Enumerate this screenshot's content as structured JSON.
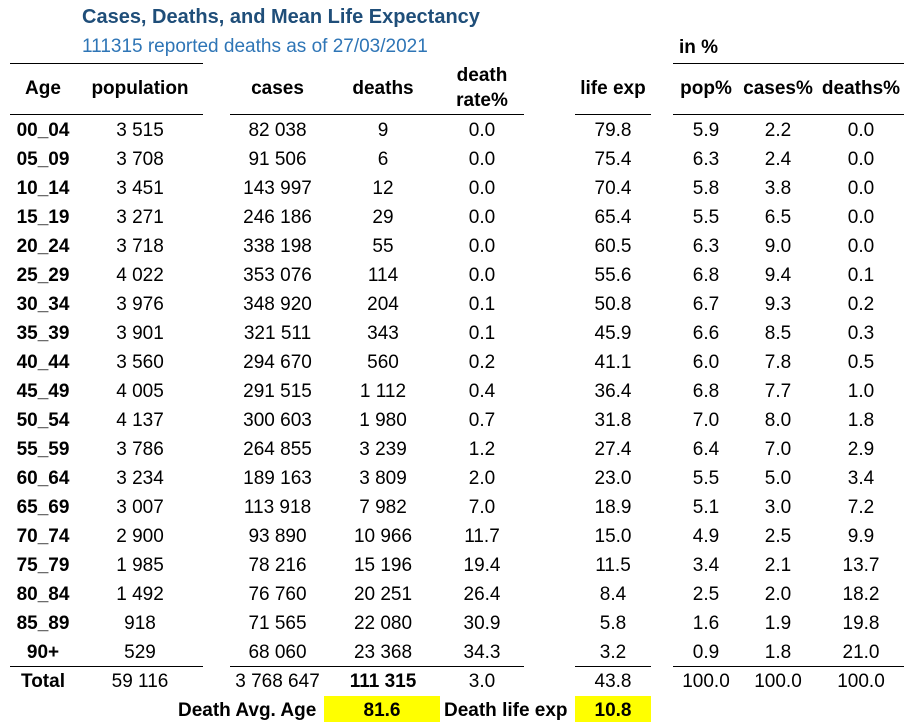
{
  "title": "Cases, Deaths, and Mean Life Expectancy",
  "subtitle": "111315 reported deaths as of 27/03/2021",
  "in_pct_label": "in %",
  "headers": {
    "age": "Age",
    "population": "population",
    "cases": "cases",
    "deaths": "deaths",
    "death_rate_1": "death",
    "death_rate_2": "rate%",
    "life_exp": "life exp",
    "pop_pct": "pop%",
    "cases_pct": "cases%",
    "deaths_pct": "deaths%"
  },
  "rows": [
    {
      "age": "00_04",
      "population": "3 515",
      "cases": "82 038",
      "deaths": "9",
      "death_rate": "0.0",
      "life_exp": "79.8",
      "pop_pct": "5.9",
      "cases_pct": "2.2",
      "deaths_pct": "0.0"
    },
    {
      "age": "05_09",
      "population": "3 708",
      "cases": "91 506",
      "deaths": "6",
      "death_rate": "0.0",
      "life_exp": "75.4",
      "pop_pct": "6.3",
      "cases_pct": "2.4",
      "deaths_pct": "0.0"
    },
    {
      "age": "10_14",
      "population": "3 451",
      "cases": "143 997",
      "deaths": "12",
      "death_rate": "0.0",
      "life_exp": "70.4",
      "pop_pct": "5.8",
      "cases_pct": "3.8",
      "deaths_pct": "0.0"
    },
    {
      "age": "15_19",
      "population": "3 271",
      "cases": "246 186",
      "deaths": "29",
      "death_rate": "0.0",
      "life_exp": "65.4",
      "pop_pct": "5.5",
      "cases_pct": "6.5",
      "deaths_pct": "0.0"
    },
    {
      "age": "20_24",
      "population": "3 718",
      "cases": "338 198",
      "deaths": "55",
      "death_rate": "0.0",
      "life_exp": "60.5",
      "pop_pct": "6.3",
      "cases_pct": "9.0",
      "deaths_pct": "0.0"
    },
    {
      "age": "25_29",
      "population": "4 022",
      "cases": "353 076",
      "deaths": "114",
      "death_rate": "0.0",
      "life_exp": "55.6",
      "pop_pct": "6.8",
      "cases_pct": "9.4",
      "deaths_pct": "0.1"
    },
    {
      "age": "30_34",
      "population": "3 976",
      "cases": "348 920",
      "deaths": "204",
      "death_rate": "0.1",
      "life_exp": "50.8",
      "pop_pct": "6.7",
      "cases_pct": "9.3",
      "deaths_pct": "0.2"
    },
    {
      "age": "35_39",
      "population": "3 901",
      "cases": "321 511",
      "deaths": "343",
      "death_rate": "0.1",
      "life_exp": "45.9",
      "pop_pct": "6.6",
      "cases_pct": "8.5",
      "deaths_pct": "0.3"
    },
    {
      "age": "40_44",
      "population": "3 560",
      "cases": "294 670",
      "deaths": "560",
      "death_rate": "0.2",
      "life_exp": "41.1",
      "pop_pct": "6.0",
      "cases_pct": "7.8",
      "deaths_pct": "0.5"
    },
    {
      "age": "45_49",
      "population": "4 005",
      "cases": "291 515",
      "deaths": "1 112",
      "death_rate": "0.4",
      "life_exp": "36.4",
      "pop_pct": "6.8",
      "cases_pct": "7.7",
      "deaths_pct": "1.0"
    },
    {
      "age": "50_54",
      "population": "4 137",
      "cases": "300 603",
      "deaths": "1 980",
      "death_rate": "0.7",
      "life_exp": "31.8",
      "pop_pct": "7.0",
      "cases_pct": "8.0",
      "deaths_pct": "1.8"
    },
    {
      "age": "55_59",
      "population": "3 786",
      "cases": "264 855",
      "deaths": "3 239",
      "death_rate": "1.2",
      "life_exp": "27.4",
      "pop_pct": "6.4",
      "cases_pct": "7.0",
      "deaths_pct": "2.9"
    },
    {
      "age": "60_64",
      "population": "3 234",
      "cases": "189 163",
      "deaths": "3 809",
      "death_rate": "2.0",
      "life_exp": "23.0",
      "pop_pct": "5.5",
      "cases_pct": "5.0",
      "deaths_pct": "3.4"
    },
    {
      "age": "65_69",
      "population": "3 007",
      "cases": "113 918",
      "deaths": "7 982",
      "death_rate": "7.0",
      "life_exp": "18.9",
      "pop_pct": "5.1",
      "cases_pct": "3.0",
      "deaths_pct": "7.2"
    },
    {
      "age": "70_74",
      "population": "2 900",
      "cases": "93 890",
      "deaths": "10 966",
      "death_rate": "11.7",
      "life_exp": "15.0",
      "pop_pct": "4.9",
      "cases_pct": "2.5",
      "deaths_pct": "9.9"
    },
    {
      "age": "75_79",
      "population": "1 985",
      "cases": "78 216",
      "deaths": "15 196",
      "death_rate": "19.4",
      "life_exp": "11.5",
      "pop_pct": "3.4",
      "cases_pct": "2.1",
      "deaths_pct": "13.7"
    },
    {
      "age": "80_84",
      "population": "1 492",
      "cases": "76 760",
      "deaths": "20 251",
      "death_rate": "26.4",
      "life_exp": "8.4",
      "pop_pct": "2.5",
      "cases_pct": "2.0",
      "deaths_pct": "18.2"
    },
    {
      "age": "85_89",
      "population": "918",
      "cases": "71 565",
      "deaths": "22 080",
      "death_rate": "30.9",
      "life_exp": "5.8",
      "pop_pct": "1.6",
      "cases_pct": "1.9",
      "deaths_pct": "19.8"
    },
    {
      "age": "90+",
      "population": "529",
      "cases": "68 060",
      "deaths": "23 368",
      "death_rate": "34.3",
      "life_exp": "3.2",
      "pop_pct": "0.9",
      "cases_pct": "1.8",
      "deaths_pct": "21.0"
    }
  ],
  "total": {
    "age": "Total",
    "population": "59 116",
    "cases": "3 768 647",
    "deaths": "111 315",
    "death_rate": "3.0",
    "life_exp": "43.8",
    "pop_pct": "100.0",
    "cases_pct": "100.0",
    "deaths_pct": "100.0"
  },
  "footer": {
    "death_avg_age_label": "Death Avg. Age",
    "death_avg_age_value": "81.6",
    "death_life_exp_label": "Death life exp",
    "death_life_exp_value": "10.8"
  },
  "colors": {
    "title": "#1f4e79",
    "subtitle": "#2e75b6",
    "highlight": "#ffff00"
  }
}
